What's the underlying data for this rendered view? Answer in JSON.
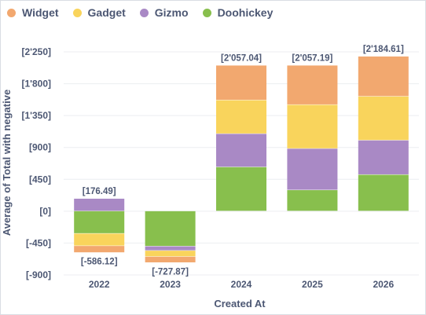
{
  "chart_data": {
    "type": "bar",
    "stacked": true,
    "xlabel": "Created At",
    "ylabel": "Average of Total with negative",
    "categories": [
      "2022",
      "2023",
      "2024",
      "2025",
      "2026"
    ],
    "series": [
      {
        "name": "Widget",
        "color": "#f2a86f",
        "values": [
          -95,
          -85,
          490,
          555,
          565
        ]
      },
      {
        "name": "Gadget",
        "color": "#f9d45c",
        "values": [
          -175,
          -85,
          475,
          620,
          620
        ]
      },
      {
        "name": "Gizmo",
        "color": "#a989c5",
        "values": [
          176.49,
          -62,
          470,
          585,
          485
        ]
      },
      {
        "name": "Doohickey",
        "color": "#88bf4d",
        "values": [
          -316.12,
          -495.87,
          622,
          297.19,
          514.61
        ]
      }
    ],
    "totals_labels": [
      "[176.49]",
      "[-586.12]",
      "[-727.87]",
      "[2'057.04]",
      "[2'057.19]",
      "[2'184.61]"
    ],
    "totals": {
      "positive": [
        176.49,
        null,
        2057.04,
        2057.19,
        2184.61
      ],
      "negative": [
        -586.12,
        -727.87,
        null,
        null,
        null
      ]
    },
    "yticks": [
      -900,
      -450,
      0,
      450,
      900,
      1350,
      1800,
      2250
    ],
    "ytick_labels": [
      "[-900]",
      "[-450]",
      "[0]",
      "[450]",
      "[900]",
      "[1'350]",
      "[1'800]",
      "[2'250]"
    ],
    "ylim": [
      -900,
      2250
    ],
    "legend_position": "top-left",
    "grid": "horizontal"
  }
}
